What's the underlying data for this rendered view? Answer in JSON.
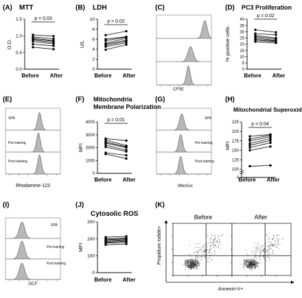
{
  "chart_data": [
    {
      "panel": "(A)",
      "title": "MTT",
      "type": "line",
      "ylabel": "O.D.",
      "ylim": [
        0,
        1.5
      ],
      "yticks": [
        "0.0",
        "0.5",
        "1.0",
        "1.5"
      ],
      "categories": [
        "Before",
        "After"
      ],
      "pvalue": "p = 0.03",
      "series": [
        [
          1.03,
          0.99
        ],
        [
          0.97,
          0.91
        ],
        [
          0.93,
          0.86
        ],
        [
          0.9,
          0.84
        ],
        [
          0.87,
          0.8
        ],
        [
          0.83,
          0.76
        ],
        [
          0.75,
          0.7
        ],
        [
          0.66,
          0.6
        ]
      ]
    },
    {
      "panel": "(B)",
      "title": "LDH",
      "type": "line",
      "ylabel": "U/L",
      "ylim": [
        0,
        10
      ],
      "yticks": [
        "0",
        "2",
        "4",
        "6",
        "8",
        "10"
      ],
      "categories": [
        "Before",
        "After"
      ],
      "pvalue": "p = 0.02",
      "series": [
        [
          6.8,
          7.6
        ],
        [
          6.0,
          6.5
        ],
        [
          5.7,
          6.4
        ],
        [
          5.2,
          6.2
        ],
        [
          5.0,
          5.8
        ],
        [
          4.8,
          5.6
        ],
        [
          4.5,
          5.3
        ],
        [
          3.9,
          4.9
        ]
      ]
    },
    {
      "panel": "(D)",
      "title": "PC3 Proliferation",
      "type": "line",
      "ylabel": "% positive cells",
      "ylim": [
        0,
        40
      ],
      "yticks": [
        "0",
        "5",
        "10",
        "15",
        "20",
        "25",
        "30",
        "35",
        "40"
      ],
      "categories": [
        "Before",
        "After"
      ],
      "pvalue": "p = 0.02",
      "series": [
        [
          31.5,
          29.5
        ],
        [
          28.5,
          27.5
        ],
        [
          27,
          25
        ],
        [
          26,
          24
        ],
        [
          25,
          23
        ],
        [
          24,
          22.5
        ],
        [
          23,
          22
        ],
        [
          22,
          21
        ]
      ]
    },
    {
      "panel": "(F)",
      "title": "Mitochondria Membrane Polarization",
      "type": "line",
      "ylabel": "MFI",
      "ylim": [
        0,
        4000
      ],
      "yticks": [
        "0",
        "1000",
        "2000",
        "3000",
        "4000"
      ],
      "categories": [
        "Before",
        "After"
      ],
      "pvalue": "p = 0.01",
      "series": [
        [
          2700,
          2550
        ],
        [
          2600,
          2150
        ],
        [
          2450,
          2050
        ],
        [
          2350,
          2000
        ],
        [
          2200,
          1800
        ],
        [
          2050,
          1700
        ],
        [
          1600,
          1400
        ],
        [
          1500,
          1150
        ]
      ]
    },
    {
      "panel": "(H)",
      "title": "Mitochondrial Superoxide",
      "type": "line",
      "ylabel": "MFI",
      "ylim": [
        100,
        225
      ],
      "yticks": [
        "100",
        "125",
        "150",
        "175",
        "200",
        "225"
      ],
      "yticks_below_break": [
        "0"
      ],
      "categories": [
        "Before",
        "After"
      ],
      "pvalue": "p = 0.04",
      "series": [
        [
          187,
          192
        ],
        [
          180,
          190
        ],
        [
          175,
          186
        ],
        [
          168,
          181
        ],
        [
          163,
          176
        ],
        [
          157,
          170
        ],
        [
          150,
          160
        ],
        [
          108,
          110
        ]
      ]
    },
    {
      "panel": "(J)",
      "title": "Cytosolic ROS",
      "type": "line",
      "ylabel": "MFI",
      "ylim": [
        0,
        300
      ],
      "yticks": [
        "0",
        "100",
        "200",
        "300"
      ],
      "categories": [
        "Before",
        "After"
      ],
      "series": [
        [
          210,
          215
        ],
        [
          200,
          205
        ],
        [
          195,
          200
        ],
        [
          190,
          195
        ],
        [
          185,
          190
        ],
        [
          180,
          185
        ],
        [
          175,
          180
        ],
        [
          165,
          170
        ]
      ]
    }
  ],
  "histograms": {
    "C": {
      "panel": "(C)",
      "xlabel": "CFSE"
    },
    "E": {
      "panel": "(E)",
      "xlabel": "Rhodamine-123",
      "labels": [
        "SFB",
        "Pre training",
        "Post training"
      ]
    },
    "G": {
      "panel": "(G)",
      "xlabel": "MitoSox",
      "labels": [
        "SFB",
        "Pre training",
        "Post training"
      ]
    },
    "I": {
      "panel": "(I)",
      "xlabel": "DCF",
      "labels": [
        "SFB",
        "Pre training",
        "Post training"
      ]
    }
  },
  "scatter": {
    "panel": "(K)",
    "titles": [
      "Before",
      "After"
    ],
    "ylabel": "Propidium Iodide+",
    "xlabel": "Annexin-V+"
  }
}
